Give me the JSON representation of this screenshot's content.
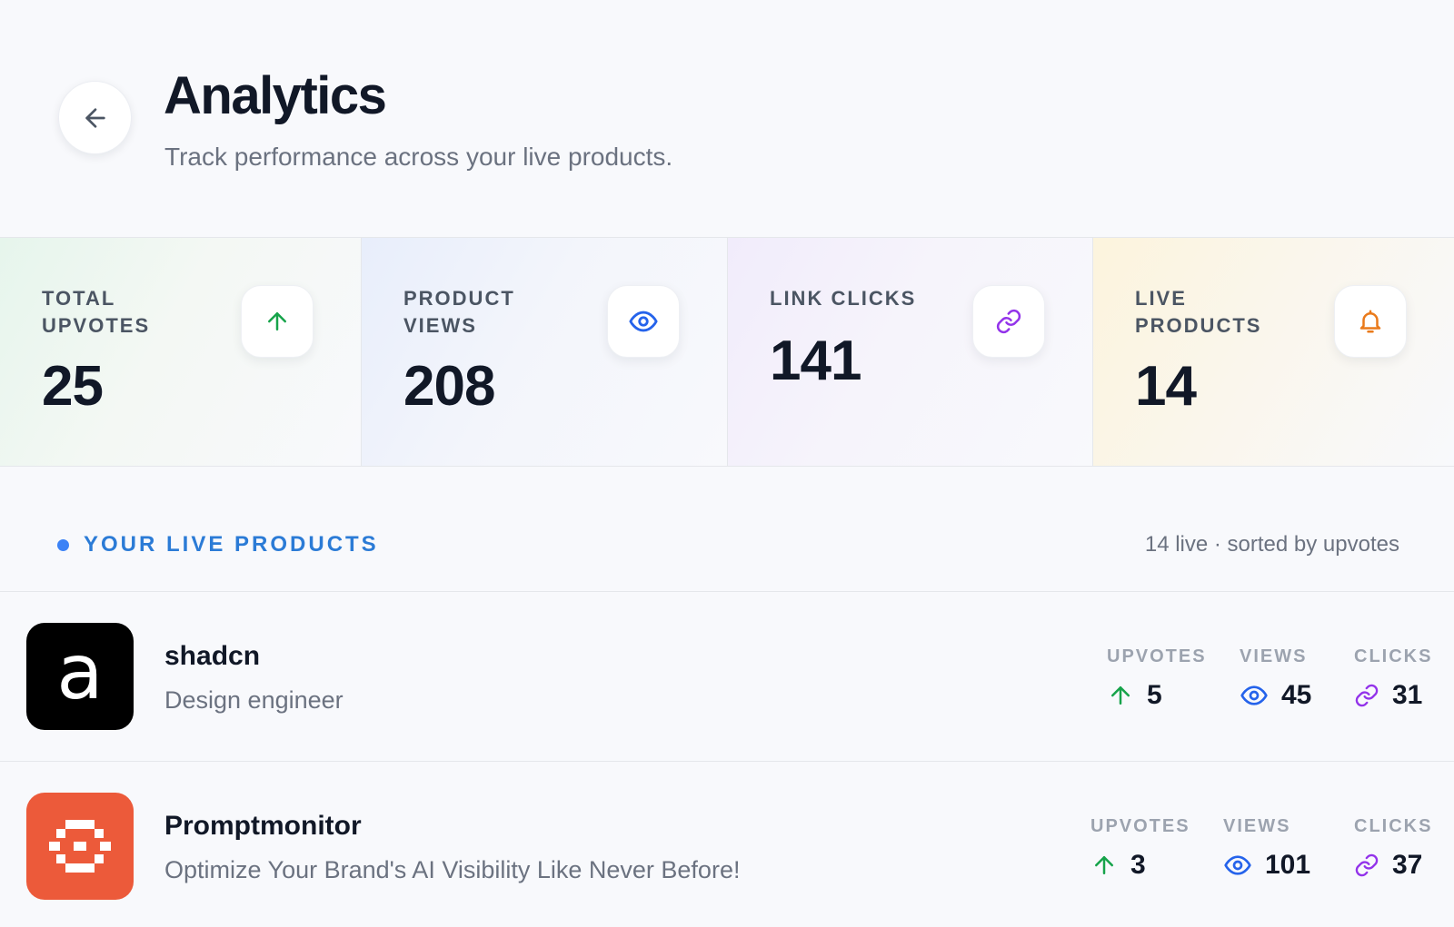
{
  "header": {
    "back_icon": "arrow-left-icon",
    "title": "Analytics",
    "subtitle": "Track performance across your live products."
  },
  "stats": [
    {
      "label": "TOTAL UPVOTES",
      "value": "25",
      "icon": "arrow-up-icon",
      "color": "#16a34a"
    },
    {
      "label": "PRODUCT VIEWS",
      "value": "208",
      "icon": "eye-icon",
      "color": "#2563eb"
    },
    {
      "label": "LINK CLICKS",
      "value": "141",
      "icon": "link-icon",
      "color": "#9333ea"
    },
    {
      "label": "LIVE PRODUCTS",
      "value": "14",
      "icon": "bell-icon",
      "color": "#ea7a1a"
    }
  ],
  "section": {
    "title": "YOUR LIVE PRODUCTS",
    "meta": "14 live · sorted by upvotes"
  },
  "metric_labels": {
    "upvotes": "UPVOTES",
    "views": "VIEWS",
    "clicks": "CLICKS"
  },
  "products": [
    {
      "name": "shadcn",
      "description": "Design engineer",
      "logo_letter": "a",
      "logo_bg": "#000000",
      "upvotes": "5",
      "views": "45",
      "clicks": "31"
    },
    {
      "name": "Promptmonitor",
      "description": "Optimize Your Brand's AI Visibility Like Never Before!",
      "logo_bg": "#ec5a3a",
      "upvotes": "3",
      "views": "101",
      "clicks": "37"
    }
  ],
  "colors": {
    "accent": "#2b7bd6",
    "upvote": "#16a34a",
    "view": "#2563eb",
    "click": "#9333ea",
    "live": "#ea7a1a"
  }
}
